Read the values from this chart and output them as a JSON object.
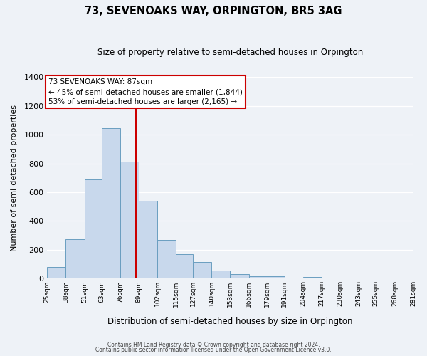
{
  "title": "73, SEVENOAKS WAY, ORPINGTON, BR5 3AG",
  "subtitle": "Size of property relative to semi-detached houses in Orpington",
  "xlabel": "Distribution of semi-detached houses by size in Orpington",
  "ylabel": "Number of semi-detached properties",
  "bin_labels": [
    "25sqm",
    "38sqm",
    "51sqm",
    "63sqm",
    "76sqm",
    "89sqm",
    "102sqm",
    "115sqm",
    "127sqm",
    "140sqm",
    "153sqm",
    "166sqm",
    "179sqm",
    "191sqm",
    "204sqm",
    "217sqm",
    "230sqm",
    "243sqm",
    "255sqm",
    "268sqm",
    "281sqm"
  ],
  "bin_edges": [
    25,
    38,
    51,
    63,
    76,
    89,
    102,
    115,
    127,
    140,
    153,
    166,
    179,
    191,
    204,
    217,
    230,
    243,
    255,
    268,
    281
  ],
  "bar_heights": [
    80,
    275,
    690,
    1045,
    810,
    540,
    270,
    170,
    115,
    55,
    30,
    15,
    15,
    0,
    10,
    0,
    5,
    0,
    0,
    5
  ],
  "bar_color": "#c8d8ec",
  "bar_edge_color": "#6a9ec0",
  "property_value": 87,
  "vline_color": "#cc0000",
  "annotation_line1": "73 SEVENOAKS WAY: 87sqm",
  "annotation_line2": "← 45% of semi-detached houses are smaller (1,844)",
  "annotation_line3": "53% of semi-detached houses are larger (2,165) →",
  "annotation_box_color": "#ffffff",
  "annotation_box_edge": "#cc0000",
  "ylim": [
    0,
    1400
  ],
  "yticks": [
    0,
    200,
    400,
    600,
    800,
    1000,
    1200,
    1400
  ],
  "footer1": "Contains HM Land Registry data © Crown copyright and database right 2024.",
  "footer2": "Contains public sector information licensed under the Open Government Licence v3.0.",
  "background_color": "#eef2f7",
  "grid_color": "#ffffff"
}
